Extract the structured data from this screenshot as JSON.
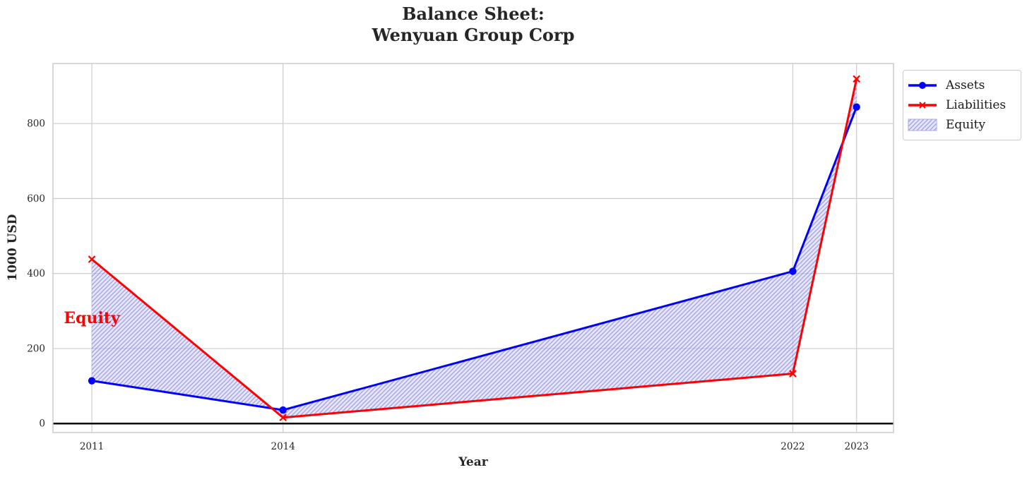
{
  "chart_data": {
    "type": "line",
    "title_lines": [
      "Balance Sheet:",
      "Wenyuan Group Corp"
    ],
    "xlabel": "Year",
    "ylabel": "1000 USD",
    "x": [
      2011,
      2014,
      2022,
      2023
    ],
    "series": [
      {
        "name": "Assets",
        "color": "#0000ff",
        "marker": "circle",
        "line_width": 3,
        "values": [
          114,
          36,
          406,
          844
        ]
      },
      {
        "name": "Liabilities",
        "color": "#ff0000",
        "marker": "x",
        "line_width": 3,
        "values": [
          438,
          16,
          133,
          919
        ]
      }
    ],
    "fill_between": {
      "label": "Equity",
      "between_series": [
        "Assets",
        "Liabilities"
      ],
      "facecolor": "#ccccff",
      "face_opacity": 0.5,
      "hatch": "//",
      "hatch_color": "#6666cc"
    },
    "annotation": {
      "text": "Equity",
      "color": "#ff0000",
      "x": 2010.56,
      "y": 280
    },
    "axhline": {
      "y": 0,
      "color": "#000000",
      "line_width": 2.5
    },
    "xticks": {
      "values": [
        2011,
        2014,
        2022,
        2023
      ],
      "labels": [
        "2011",
        "2014",
        "2022",
        "2023"
      ]
    },
    "yticks": {
      "values": [
        0,
        200,
        400,
        600,
        800
      ],
      "labels": [
        "0",
        "200",
        "400",
        "600",
        "800"
      ]
    },
    "xlim": [
      2010.39,
      2023.58
    ],
    "ylim": [
      -24,
      960
    ],
    "grid": true,
    "legend": {
      "position": "upper right outside",
      "entries": [
        "Assets",
        "Liabilities",
        "Equity"
      ]
    },
    "colors": {
      "grid": "#cccccc",
      "spine": "#c8c8c8",
      "tick_text": "#262626",
      "title_text": "#262626",
      "background": "#ffffff"
    }
  }
}
